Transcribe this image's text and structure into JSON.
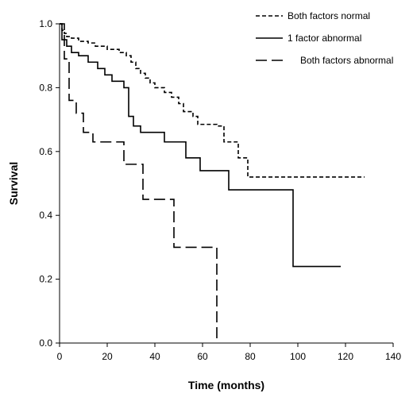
{
  "chart_data": {
    "type": "line",
    "step": true,
    "title": "",
    "xlabel": "Time (months)",
    "ylabel": "Survival",
    "xlim": [
      0,
      140
    ],
    "ylim": [
      0,
      1.0
    ],
    "x_ticks": [
      "0",
      "20",
      "40",
      "60",
      "80",
      "100",
      "120",
      "140"
    ],
    "y_ticks": [
      "0.0",
      "0.2",
      "0.4",
      "0.6",
      "0.8",
      "1.0"
    ],
    "grid": false,
    "legend_position": "top-right",
    "series": [
      {
        "name": "Both factors normal",
        "line_style": "short-dash",
        "color": "#000000",
        "points": [
          [
            0,
            1.0
          ],
          [
            1,
            0.98
          ],
          [
            2,
            0.97
          ],
          [
            3,
            0.96
          ],
          [
            5,
            0.955
          ],
          [
            8,
            0.945
          ],
          [
            12,
            0.94
          ],
          [
            15,
            0.93
          ],
          [
            20,
            0.92
          ],
          [
            25,
            0.91
          ],
          [
            28,
            0.9
          ],
          [
            30,
            0.88
          ],
          [
            32,
            0.86
          ],
          [
            34,
            0.845
          ],
          [
            36,
            0.83
          ],
          [
            38,
            0.815
          ],
          [
            40,
            0.8
          ],
          [
            44,
            0.785
          ],
          [
            47,
            0.77
          ],
          [
            50,
            0.75
          ],
          [
            52,
            0.725
          ],
          [
            56,
            0.71
          ],
          [
            58,
            0.685
          ],
          [
            66,
            0.68
          ],
          [
            69,
            0.63
          ],
          [
            73,
            0.63
          ],
          [
            75,
            0.58
          ],
          [
            79,
            0.52
          ],
          [
            128,
            0.52
          ]
        ]
      },
      {
        "name": "1 factor abnormal",
        "line_style": "solid",
        "color": "#000000",
        "points": [
          [
            0,
            1.0
          ],
          [
            1,
            0.95
          ],
          [
            3,
            0.93
          ],
          [
            5,
            0.91
          ],
          [
            8,
            0.9
          ],
          [
            12,
            0.88
          ],
          [
            16,
            0.86
          ],
          [
            19,
            0.84
          ],
          [
            22,
            0.82
          ],
          [
            27,
            0.8
          ],
          [
            29,
            0.71
          ],
          [
            31,
            0.68
          ],
          [
            34,
            0.66
          ],
          [
            44,
            0.63
          ],
          [
            53,
            0.58
          ],
          [
            59,
            0.54
          ],
          [
            71,
            0.48
          ],
          [
            97,
            0.48
          ],
          [
            98,
            0.24
          ],
          [
            118,
            0.24
          ]
        ]
      },
      {
        "name": "Both factors abnormal",
        "line_style": "long-dash",
        "color": "#000000",
        "points": [
          [
            0,
            1.0
          ],
          [
            2,
            0.89
          ],
          [
            4,
            0.76
          ],
          [
            7,
            0.72
          ],
          [
            10,
            0.66
          ],
          [
            14,
            0.63
          ],
          [
            24,
            0.63
          ],
          [
            27,
            0.56
          ],
          [
            32,
            0.56
          ],
          [
            35,
            0.45
          ],
          [
            46,
            0.45
          ],
          [
            48,
            0.3
          ],
          [
            65,
            0.3
          ],
          [
            66,
            0.0
          ]
        ]
      }
    ]
  }
}
